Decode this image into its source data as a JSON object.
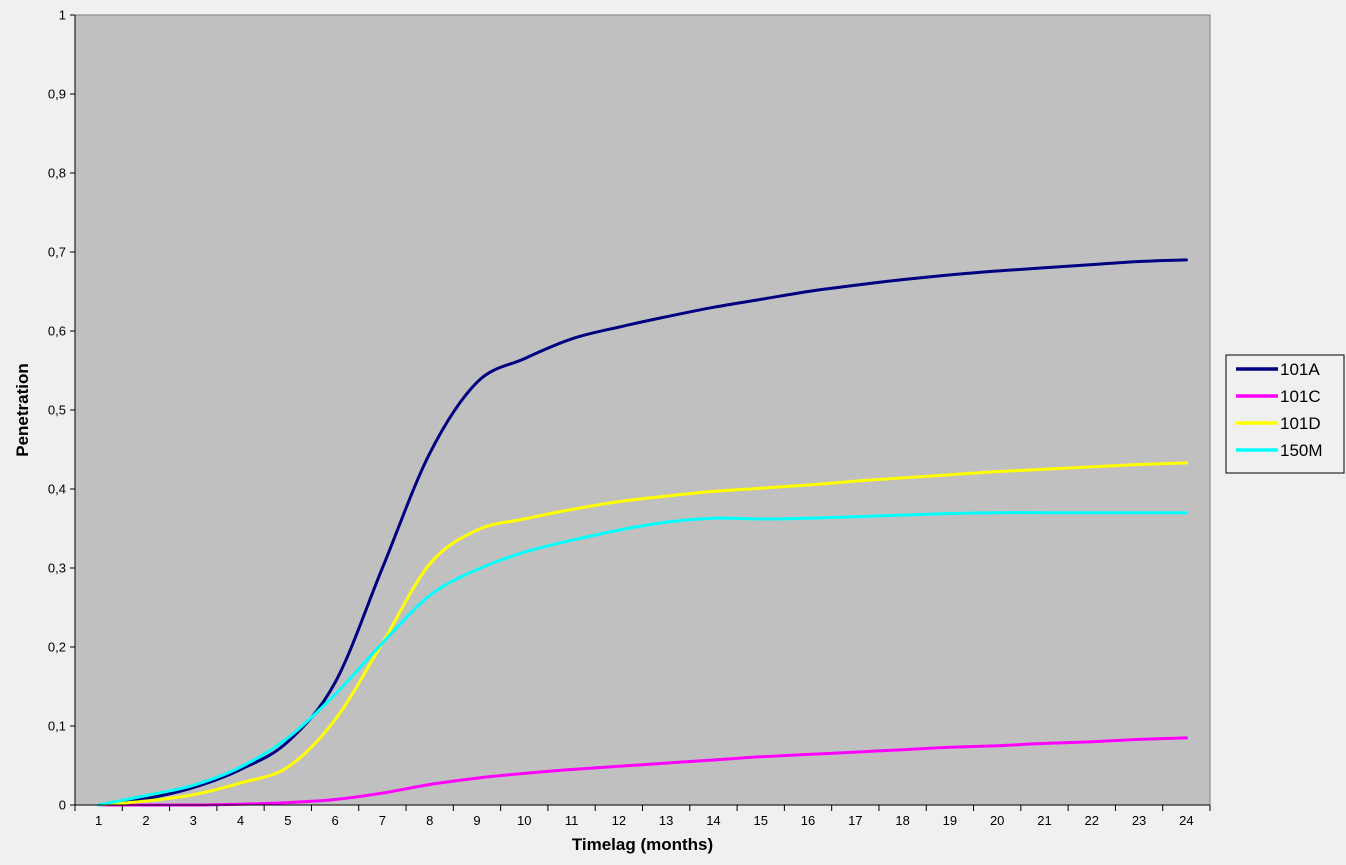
{
  "chart_data": {
    "type": "line",
    "title": "",
    "xlabel": "Timelag (months)",
    "ylabel": "Penetration",
    "x": [
      1,
      2,
      3,
      4,
      5,
      6,
      7,
      8,
      9,
      10,
      11,
      12,
      13,
      14,
      15,
      16,
      17,
      18,
      19,
      20,
      21,
      22,
      23,
      24
    ],
    "x_tick_labels": [
      "1",
      "2",
      "3",
      "4",
      "5",
      "6",
      "7",
      "8",
      "9",
      "10",
      "11",
      "12",
      "13",
      "14",
      "15",
      "16",
      "17",
      "18",
      "19",
      "20",
      "21",
      "22",
      "23",
      "24"
    ],
    "ylim": [
      0,
      1
    ],
    "y_ticks": [
      0,
      0.1,
      0.2,
      0.3,
      0.4,
      0.5,
      0.6,
      0.7,
      0.8,
      0.9,
      1
    ],
    "y_tick_labels": [
      "0",
      "0,1",
      "0,2",
      "0,3",
      "0,4",
      "0,5",
      "0,6",
      "0,7",
      "0,8",
      "0,9",
      "1"
    ],
    "grid": false,
    "legend": "right",
    "plot_background": "#c0c0c0",
    "series": [
      {
        "name": "101A",
        "color": "#000080",
        "values": [
          0.0,
          0.008,
          0.022,
          0.045,
          0.08,
          0.155,
          0.3,
          0.445,
          0.535,
          0.565,
          0.59,
          0.605,
          0.618,
          0.63,
          0.64,
          0.65,
          0.658,
          0.665,
          0.671,
          0.676,
          0.68,
          0.684,
          0.688,
          0.69
        ]
      },
      {
        "name": "101C",
        "color": "#ff00ff",
        "values": [
          0.0,
          0.0,
          0.0,
          0.001,
          0.003,
          0.007,
          0.015,
          0.026,
          0.034,
          0.04,
          0.045,
          0.049,
          0.053,
          0.057,
          0.061,
          0.064,
          0.067,
          0.07,
          0.073,
          0.075,
          0.078,
          0.08,
          0.083,
          0.085
        ]
      },
      {
        "name": "101D",
        "color": "#ffff00",
        "values": [
          0.0,
          0.005,
          0.013,
          0.028,
          0.048,
          0.108,
          0.205,
          0.305,
          0.348,
          0.362,
          0.374,
          0.384,
          0.391,
          0.397,
          0.401,
          0.405,
          0.41,
          0.414,
          0.418,
          0.422,
          0.425,
          0.428,
          0.431,
          0.433
        ]
      },
      {
        "name": "150M",
        "color": "#00ffff",
        "values": [
          0.0,
          0.012,
          0.025,
          0.048,
          0.085,
          0.14,
          0.205,
          0.265,
          0.298,
          0.32,
          0.335,
          0.348,
          0.358,
          0.363,
          0.362,
          0.363,
          0.365,
          0.367,
          0.369,
          0.37,
          0.37,
          0.37,
          0.37,
          0.37
        ]
      }
    ]
  }
}
